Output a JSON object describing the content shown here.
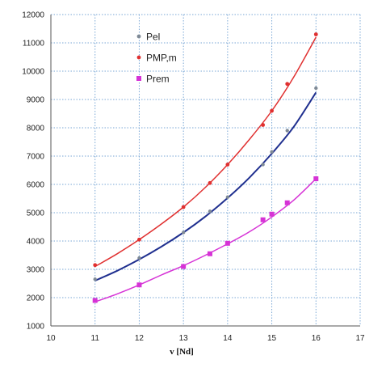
{
  "chart_data": {
    "type": "scatter",
    "title": "",
    "xlabel": "v [Nd]",
    "ylabel": "",
    "xlim": [
      10,
      17
    ],
    "ylim": [
      1000,
      12000
    ],
    "x_ticks": [
      "10",
      "11",
      "12",
      "13",
      "14",
      "15",
      "16",
      "17"
    ],
    "y_ticks": [
      "1000",
      "2000",
      "3000",
      "4000",
      "5000",
      "6000",
      "7000",
      "8000",
      "9000",
      "10000",
      "11000",
      "12000"
    ],
    "grid": "dotted",
    "legend_position": "top-left inside plot",
    "series": [
      {
        "name": "Pel",
        "color": "#7f8a96",
        "curve_color": "#1f2f8f",
        "points": [
          [
            11,
            2650
          ],
          [
            12,
            3400
          ],
          [
            13,
            4300
          ],
          [
            13.6,
            5050
          ],
          [
            14,
            5550
          ],
          [
            14.8,
            6700
          ],
          [
            15,
            7150
          ],
          [
            15.35,
            7900
          ],
          [
            16,
            9400
          ]
        ],
        "curve": [
          [
            11,
            2600
          ],
          [
            11.5,
            2950
          ],
          [
            12,
            3350
          ],
          [
            12.5,
            3800
          ],
          [
            13,
            4300
          ],
          [
            13.5,
            4870
          ],
          [
            14,
            5520
          ],
          [
            14.5,
            6250
          ],
          [
            15,
            7090
          ],
          [
            15.5,
            8040
          ],
          [
            16,
            9250
          ]
        ]
      },
      {
        "name": "PMP,m",
        "color": "#e03030",
        "curve_color": "#e03030",
        "points": [
          [
            11,
            3150
          ],
          [
            12,
            4050
          ],
          [
            13,
            5200
          ],
          [
            13.6,
            6050
          ],
          [
            14,
            6700
          ],
          [
            14.8,
            8100
          ],
          [
            15,
            8600
          ],
          [
            15.35,
            9550
          ],
          [
            16,
            11300
          ]
        ],
        "curve": [
          [
            11,
            3100
          ],
          [
            11.5,
            3550
          ],
          [
            12,
            4050
          ],
          [
            12.5,
            4600
          ],
          [
            13,
            5200
          ],
          [
            13.5,
            5900
          ],
          [
            14,
            6700
          ],
          [
            14.5,
            7600
          ],
          [
            15,
            8600
          ],
          [
            15.5,
            9800
          ],
          [
            16,
            11200
          ]
        ]
      },
      {
        "name": "Prem",
        "color": "#d633d6",
        "curve_color": "#d633d6",
        "points": [
          [
            11,
            1900
          ],
          [
            12,
            2450
          ],
          [
            13,
            3100
          ],
          [
            13.6,
            3550
          ],
          [
            14,
            3920
          ],
          [
            14.8,
            4750
          ],
          [
            15,
            4950
          ],
          [
            15.35,
            5350
          ],
          [
            16,
            6200
          ]
        ],
        "curve": [
          [
            11,
            1850
          ],
          [
            11.5,
            2130
          ],
          [
            12,
            2450
          ],
          [
            12.5,
            2800
          ],
          [
            13,
            3130
          ],
          [
            13.5,
            3500
          ],
          [
            14,
            3900
          ],
          [
            14.5,
            4330
          ],
          [
            15,
            4850
          ],
          [
            15.5,
            5450
          ],
          [
            16,
            6200
          ]
        ]
      }
    ]
  }
}
